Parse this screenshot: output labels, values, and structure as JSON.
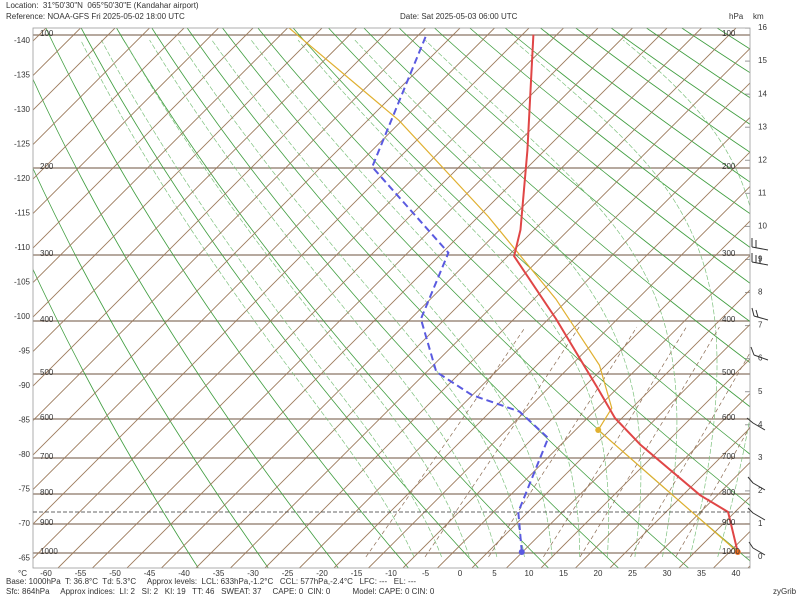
{
  "header": {
    "location": "Location:  31°50'30\"N  065°50'30\"E (Kandahar airport)",
    "reference": "Reference: NOAA-GFS Fri 2025-05-02 18:00 UTC",
    "date": "Date: Sat 2025-05-03 06:00 UTC"
  },
  "axes": {
    "temperature_unit": "°C",
    "pressure_unit": "hPa",
    "height_unit": "km",
    "temperature_ticks": [
      -60,
      -55,
      -50,
      -45,
      -40,
      -35,
      -30,
      -25,
      -20,
      -15,
      -10,
      -5,
      0,
      5,
      10,
      15,
      20,
      25,
      30,
      35,
      40
    ],
    "left_temperature_ticks": [
      -140,
      -135,
      -130,
      -125,
      -120,
      -115,
      -110,
      -105,
      -100,
      -95,
      -90,
      -85,
      -80,
      -75,
      -70,
      -65
    ],
    "pressure_levels": [
      100,
      200,
      300,
      400,
      500,
      600,
      700,
      800,
      900,
      1000
    ],
    "height_ticks": [
      0,
      1,
      2,
      3,
      4,
      5,
      6,
      7,
      8,
      9,
      10,
      11,
      12,
      13,
      14,
      15,
      16
    ]
  },
  "profiles": {
    "temperature": {
      "color": "#e04646",
      "height_km": [
        0.15,
        1.36,
        1.87,
        3.4,
        4.2,
        5.1,
        7.2,
        9.1,
        9.9,
        12.3,
        15.8
      ],
      "temp_c": [
        36.2,
        29.0,
        22.5,
        6.5,
        -1.0,
        -7.8,
        -23.9,
        -39.1,
        -42.0,
        -52.5,
        -68.4
      ]
    },
    "dewpoint": {
      "color": "#5a5ae0",
      "height_km": [
        0.15,
        1.36,
        3.6,
        4.4,
        4.9,
        5.6,
        7.2,
        9.2,
        11.8,
        15.8
      ],
      "temp_c": [
        4.9,
        -1.4,
        -7.8,
        -15.8,
        -25.1,
        -33.6,
        -43.5,
        -49.1,
        -72.6,
        -83.9
      ]
    },
    "parcel": {
      "color": "#e0b030",
      "height_km": [
        0.15,
        3.84,
        4.5,
        5.8,
        7.8,
        10.3,
        13.2,
        16.1
      ],
      "temp_c": [
        36.2,
        -1.7,
        -2.9,
        -10.9,
        -26.8,
        -48.6,
        -75.4,
        -105.8
      ]
    }
  },
  "footer": {
    "line1": "Base: 1000hPa  T: 36.8°C  Td: 5.3°C     Approx levels:  LCL: 633hPa,-1.2°C   CCL: 577hPa,-2.4°C   LFC: ---   EL: ---",
    "line2": "Sfc: 864hPa     Approx indices:  LI: 2   SI: 2   KI: 19   TT: 46   SWEAT: 37     CAPE: 0  CIN: 0          Model: CAPE: 0 CIN: 0",
    "credit": "zyGrib"
  }
}
